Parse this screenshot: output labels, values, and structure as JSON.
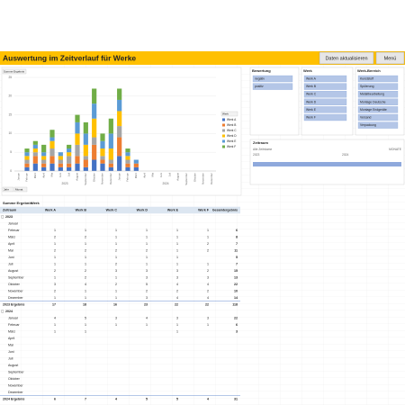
{
  "header": {
    "title": "Auswertung im Zeitverlauf für Werke",
    "buttons": [
      "Daten aktualisieren",
      "Menü"
    ]
  },
  "chart_data": {
    "type": "bar",
    "stacked": true,
    "y_label": "Summe Ergebnis",
    "legend_title": "Werk",
    "categories": [
      "Januar",
      "Februar",
      "März",
      "April",
      "Mai",
      "Juni",
      "Juli",
      "August",
      "September",
      "Oktober",
      "November",
      "Dezember",
      "Januar",
      "Februar",
      "März",
      "April",
      "Mai",
      "Juni",
      "Juli",
      "August",
      "September",
      "Oktober",
      "November",
      "Dezember"
    ],
    "groups": [
      "2023",
      "2024"
    ],
    "ylim": [
      0,
      25
    ],
    "yticks": [
      0,
      5,
      10,
      15,
      20,
      25
    ],
    "grid": true,
    "series": [
      {
        "name": "Werk A",
        "color": "#4472c4",
        "values": [
          null,
          1,
          2,
          1,
          2,
          1,
          1,
          2,
          1,
          3,
          2,
          1,
          4,
          1,
          1,
          null,
          null,
          null,
          null,
          null,
          null,
          null,
          null,
          null
        ]
      },
      {
        "name": "Werk B",
        "color": "#ed7d31",
        "values": [
          null,
          1,
          2,
          1,
          2,
          1,
          1,
          2,
          2,
          4,
          1,
          1,
          5,
          1,
          1,
          null,
          null,
          null,
          null,
          null,
          null,
          null,
          null,
          null
        ]
      },
      {
        "name": "Werk C",
        "color": "#a5a5a5",
        "values": [
          null,
          1,
          1,
          1,
          2,
          1,
          2,
          3,
          1,
          2,
          1,
          1,
          3,
          1,
          null,
          null,
          null,
          null,
          null,
          null,
          null,
          null,
          null,
          null
        ]
      },
      {
        "name": "Werk D",
        "color": "#ffc000",
        "values": [
          null,
          1,
          1,
          1,
          2,
          1,
          1,
          3,
          3,
          5,
          2,
          3,
          4,
          1,
          null,
          null,
          null,
          null,
          null,
          null,
          null,
          null,
          null,
          null
        ]
      },
      {
        "name": "Werk E",
        "color": "#5b9bd5",
        "values": [
          null,
          1,
          1,
          1,
          1,
          1,
          1,
          3,
          3,
          4,
          2,
          4,
          3,
          1,
          1,
          null,
          null,
          null,
          null,
          null,
          null,
          null,
          null,
          null
        ]
      },
      {
        "name": "Werk F",
        "color": "#70ad47",
        "values": [
          null,
          1,
          1,
          2,
          2,
          null,
          1,
          2,
          3,
          4,
          2,
          4,
          3,
          1,
          null,
          null,
          null,
          null,
          null,
          null,
          null,
          null,
          null,
          null
        ]
      }
    ],
    "field_buttons": [
      "Jahr",
      "Monat"
    ]
  },
  "slicers": [
    {
      "title": "Bewertung",
      "items": [
        "negativ",
        "positiv"
      ]
    },
    {
      "title": "Werk",
      "items": [
        "Werk A",
        "Werk B",
        "Werk C",
        "Werk D",
        "Werk E",
        "Werk F"
      ]
    },
    {
      "title": "Werk-Bereich",
      "items": [
        "Kunststoff",
        "Spülerung",
        "Metallbearbeitung",
        "Montage Deutsche",
        "Montage Endgeräte",
        "Versand",
        "Verpackung"
      ]
    }
  ],
  "timeline": {
    "title": "Zeitraum",
    "range": "Alle Zeiträume",
    "unit": "MONATE",
    "years": [
      "2023",
      "2024"
    ]
  },
  "table": {
    "title": "Summe Ergebnis",
    "column_field": "Werk",
    "columns": [
      "Zeitraum",
      "Werk A",
      "Werk B",
      "Werk C",
      "Werk D",
      "Werk E",
      "Werk F",
      "Gesamtergebnis"
    ],
    "groups": [
      {
        "label": "2023",
        "rows": [
          {
            "label": "Januar",
            "values": [
              null,
              null,
              null,
              null,
              null,
              null,
              null
            ]
          },
          {
            "label": "Februar",
            "values": [
              1,
              1,
              1,
              1,
              1,
              1,
              6
            ]
          },
          {
            "label": "März",
            "values": [
              2,
              2,
              1,
              1,
              1,
              1,
              8
            ]
          },
          {
            "label": "April",
            "values": [
              1,
              1,
              1,
              1,
              1,
              2,
              7
            ]
          },
          {
            "label": "Mai",
            "values": [
              2,
              2,
              2,
              2,
              1,
              2,
              11
            ]
          },
          {
            "label": "Juni",
            "values": [
              1,
              1,
              1,
              1,
              1,
              null,
              5
            ]
          },
          {
            "label": "Juli",
            "values": [
              1,
              1,
              2,
              1,
              1,
              1,
              7
            ]
          },
          {
            "label": "August",
            "values": [
              2,
              2,
              3,
              3,
              3,
              2,
              15
            ]
          },
          {
            "label": "September",
            "values": [
              1,
              2,
              1,
              3,
              3,
              3,
              13
            ]
          },
          {
            "label": "Oktober",
            "values": [
              3,
              4,
              2,
              5,
              4,
              4,
              22
            ]
          },
          {
            "label": "November",
            "values": [
              2,
              1,
              1,
              2,
              2,
              2,
              10
            ]
          },
          {
            "label": "Dezember",
            "values": [
              1,
              1,
              1,
              3,
              4,
              4,
              14
            ]
          }
        ],
        "total": {
          "label": "2023 Ergebnis",
          "values": [
            17,
            18,
            16,
            23,
            22,
            22,
            118
          ]
        }
      },
      {
        "label": "2024",
        "rows": [
          {
            "label": "Januar",
            "values": [
              4,
              5,
              3,
              4,
              3,
              3,
              22
            ]
          },
          {
            "label": "Februar",
            "values": [
              1,
              1,
              1,
              1,
              1,
              1,
              6
            ]
          },
          {
            "label": "März",
            "values": [
              1,
              1,
              null,
              null,
              1,
              null,
              3
            ]
          },
          {
            "label": "April",
            "values": [
              null,
              null,
              null,
              null,
              null,
              null,
              null
            ]
          },
          {
            "label": "Mai",
            "values": [
              null,
              null,
              null,
              null,
              null,
              null,
              null
            ]
          },
          {
            "label": "Juni",
            "values": [
              null,
              null,
              null,
              null,
              null,
              null,
              null
            ]
          },
          {
            "label": "Juli",
            "values": [
              null,
              null,
              null,
              null,
              null,
              null,
              null
            ]
          },
          {
            "label": "August",
            "values": [
              null,
              null,
              null,
              null,
              null,
              null,
              null
            ]
          },
          {
            "label": "September",
            "values": [
              null,
              null,
              null,
              null,
              null,
              null,
              null
            ]
          },
          {
            "label": "Oktober",
            "values": [
              null,
              null,
              null,
              null,
              null,
              null,
              null
            ]
          },
          {
            "label": "November",
            "values": [
              null,
              null,
              null,
              null,
              null,
              null,
              null
            ]
          },
          {
            "label": "Dezember",
            "values": [
              null,
              null,
              null,
              null,
              null,
              null,
              null
            ]
          }
        ],
        "total": {
          "label": "2024 Ergebnis",
          "values": [
            6,
            7,
            4,
            5,
            5,
            4,
            31
          ]
        }
      }
    ]
  }
}
